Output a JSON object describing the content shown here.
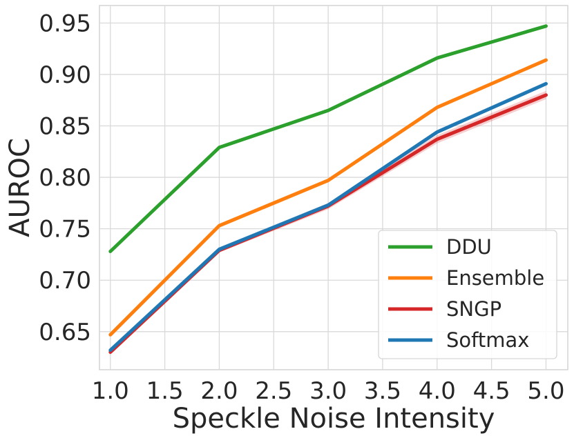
{
  "chart_data": {
    "type": "line",
    "xlabel": "Speckle Noise Intensity",
    "ylabel": "AUROC",
    "xlim": [
      0.9,
      5.2
    ],
    "ylim": [
      0.613,
      0.967
    ],
    "x_ticks": [
      1.0,
      1.5,
      2.0,
      2.5,
      3.0,
      3.5,
      4.0,
      4.5,
      5.0
    ],
    "x_tick_labels": [
      "1.0",
      "1.5",
      "2.0",
      "2.5",
      "3.0",
      "3.5",
      "4.0",
      "4.5",
      "5.0"
    ],
    "y_ticks": [
      0.65,
      0.7,
      0.75,
      0.8,
      0.85,
      0.9,
      0.95
    ],
    "y_tick_labels": [
      "0.65",
      "0.70",
      "0.75",
      "0.80",
      "0.85",
      "0.90",
      "0.95"
    ],
    "grid": true,
    "legend_position": "bottom-right",
    "x": [
      1.0,
      2.0,
      3.0,
      4.0,
      5.0
    ],
    "series": [
      {
        "name": "DDU",
        "color": "#2ca02c",
        "values": [
          0.728,
          0.829,
          0.865,
          0.916,
          0.947
        ],
        "band": [
          0.001,
          0.001,
          0.001,
          0.002,
          0.001
        ]
      },
      {
        "name": "Ensemble",
        "color": "#ff7f0e",
        "values": [
          0.647,
          0.753,
          0.797,
          0.868,
          0.914
        ],
        "band": [
          0.001,
          0.002,
          0.002,
          0.002,
          0.001
        ]
      },
      {
        "name": "SNGP",
        "color": "#d62728",
        "values": [
          0.63,
          0.729,
          0.772,
          0.837,
          0.88
        ],
        "band": [
          0.002,
          0.002,
          0.003,
          0.004,
          0.004
        ]
      },
      {
        "name": "Softmax",
        "color": "#1f77b4",
        "values": [
          0.632,
          0.73,
          0.773,
          0.844,
          0.891
        ],
        "band": [
          0.001,
          0.002,
          0.002,
          0.002,
          0.002
        ]
      }
    ]
  }
}
